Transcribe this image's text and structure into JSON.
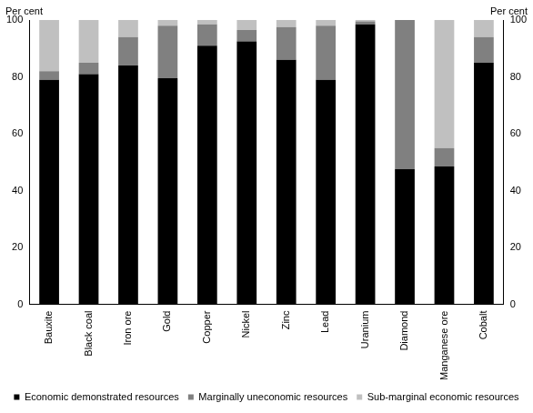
{
  "chart_data": {
    "type": "bar",
    "stacked": true,
    "legend": "bottom",
    "grid": false,
    "ylabel": "Per cent",
    "y2label": "Per cent",
    "categories": [
      "Bauxite",
      "Black coal",
      "Iron ore",
      "Gold",
      "Copper",
      "Nickel",
      "Zinc",
      "Lead",
      "Uranium",
      "Diamond",
      "Manganese ore",
      "Cobalt"
    ],
    "series": [
      {
        "name": "Economic demonstrated resources",
        "color": "#000000",
        "values": [
          79,
          81,
          84,
          79.5,
          91,
          92.5,
          86,
          79,
          98.5,
          47.5,
          48.5,
          85
        ]
      },
      {
        "name": "Marginally uneconomic resources",
        "color": "#808080",
        "values": [
          3,
          4,
          10,
          18.5,
          7.5,
          4,
          11.5,
          19,
          1,
          52.5,
          6.5,
          9
        ]
      },
      {
        "name": "Sub-marginal economic resources",
        "color": "#c0c0c0",
        "values": [
          18,
          15,
          6,
          2,
          1.5,
          3.5,
          2.5,
          2,
          0.5,
          0,
          45,
          6
        ]
      }
    ],
    "ylim": [
      0,
      100
    ],
    "yticks": [
      0,
      20,
      40,
      60,
      80,
      100
    ],
    "y2lim": [
      0,
      100
    ],
    "y2ticks": [
      0,
      20,
      40,
      60,
      80,
      100
    ]
  }
}
